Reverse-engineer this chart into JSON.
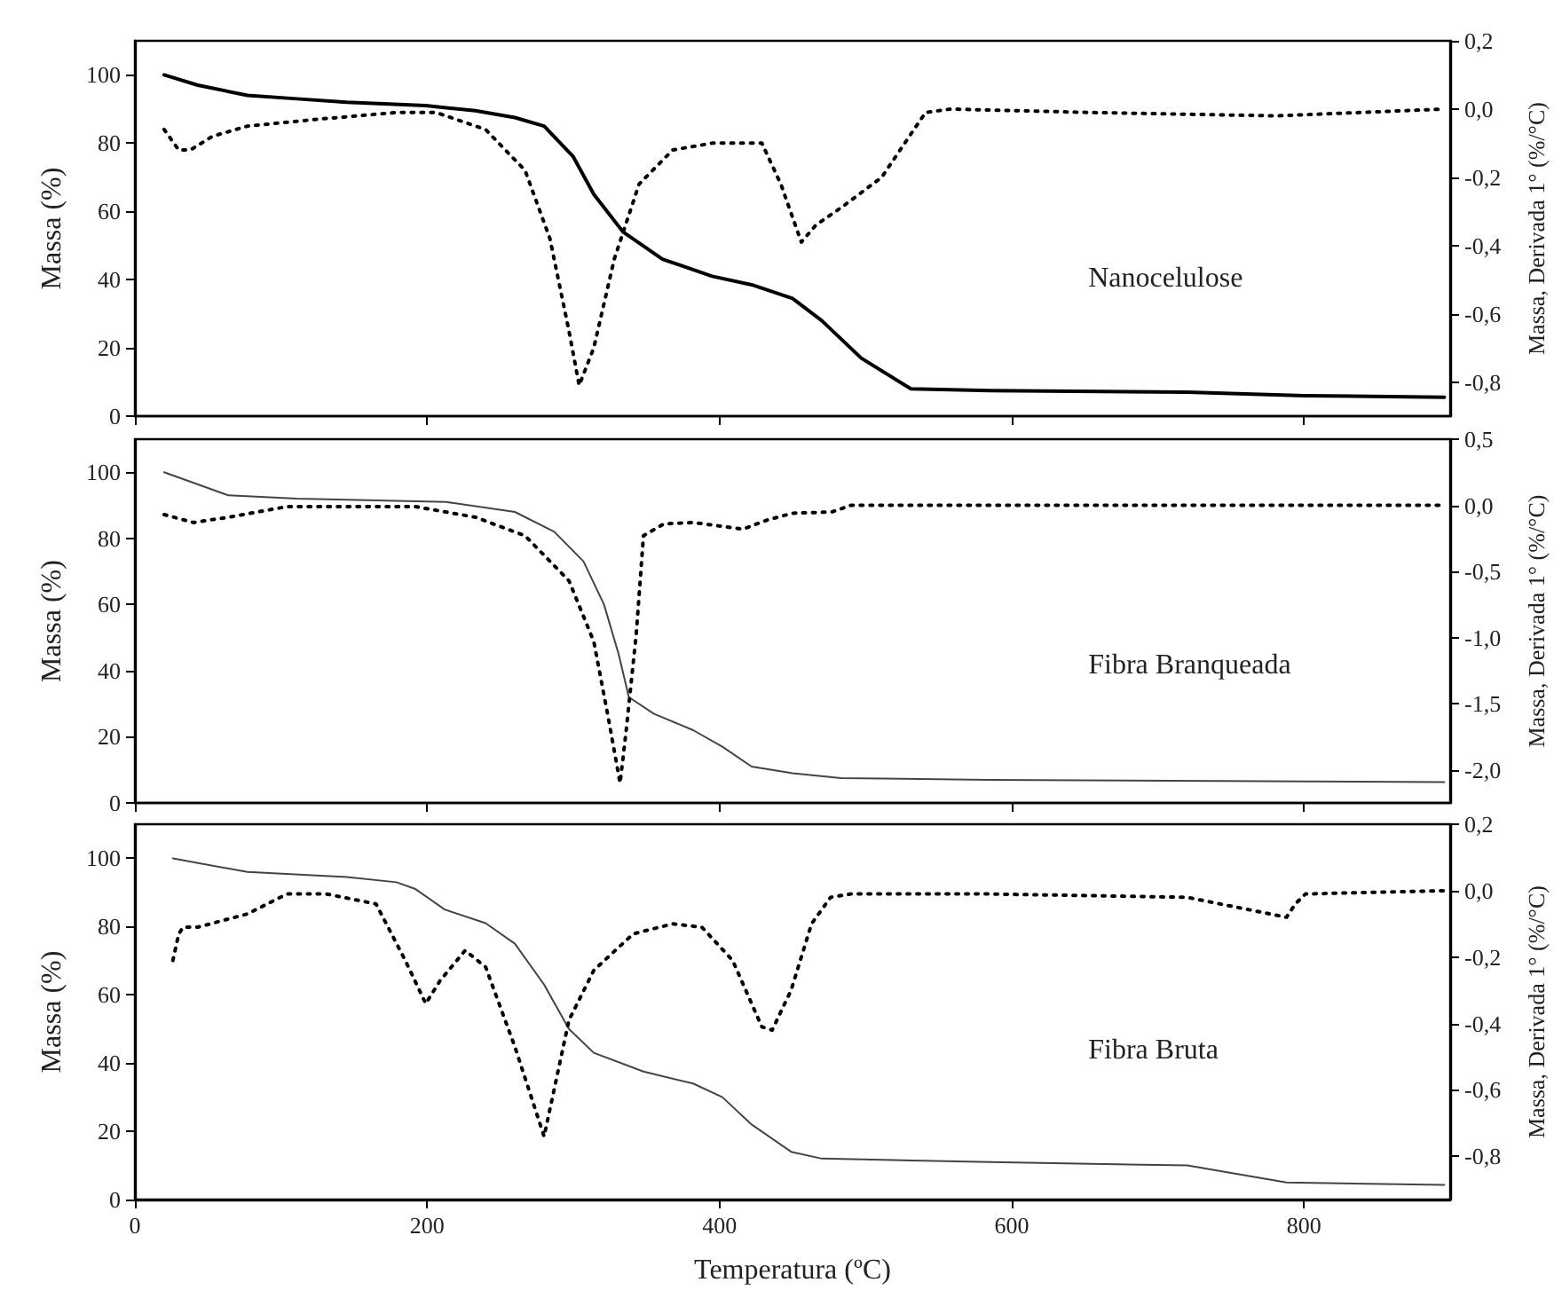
{
  "chart_data": [
    {
      "type": "line",
      "ylabel": "Massa (%)",
      "y2label": "Massa, Derivada 1° (%/°C)",
      "annotations": [
        "Nanocelulose"
      ],
      "xlim": [
        0,
        900
      ],
      "xticks": [
        0,
        200,
        400,
        600,
        800
      ],
      "ylim": [
        0,
        110
      ],
      "yticks": [
        0,
        20,
        40,
        60,
        80,
        100
      ],
      "y2lim": [
        -0.9,
        0.2
      ],
      "y2ticks": [
        {
          "value": 0.2,
          "label": "0,2"
        },
        {
          "value": 0,
          "label": "0,0"
        },
        {
          "value": -0.2,
          "label": "-0,2"
        },
        {
          "value": -0.4,
          "label": "-0,4"
        },
        {
          "value": -0.6,
          "label": "-0,6"
        },
        {
          "value": -0.8,
          "label": "-0,8"
        }
      ],
      "tick_labels": "y",
      "series": [
        {
          "color": "#000000",
          "line_style": "solid",
          "x": [
            20,
            43,
            77,
            111,
            145,
            199,
            233,
            260,
            280,
            300,
            314,
            334,
            361,
            395,
            422,
            450,
            470,
            497,
            531,
            585,
            720,
            800,
            896
          ],
          "values": [
            100,
            97,
            94,
            93,
            92,
            91,
            89.5,
            87.5,
            85,
            76,
            65,
            54,
            46,
            41,
            38.5,
            34.5,
            28,
            17,
            8,
            7.5,
            7,
            6,
            5.5
          ]
        },
        {
          "color": "#000000",
          "line_style": "dotted",
          "axis": "y2",
          "x": [
            20,
            30,
            38,
            53,
            77,
            125,
            179,
            206,
            240,
            267,
            284,
            297,
            304,
            314,
            328,
            345,
            368,
            395,
            429,
            442,
            456,
            466,
            483,
            511,
            541,
            558,
            653,
            781,
            896
          ],
          "values": [
            -0.06,
            -0.12,
            -0.12,
            -0.08,
            -0.05,
            -0.03,
            -0.01,
            -0.01,
            -0.06,
            -0.18,
            -0.38,
            -0.65,
            -0.81,
            -0.7,
            -0.44,
            -0.22,
            -0.12,
            -0.1,
            -0.1,
            -0.22,
            -0.39,
            -0.34,
            -0.29,
            -0.2,
            -0.01,
            0,
            -0.01,
            -0.02,
            0
          ]
        }
      ]
    },
    {
      "type": "line",
      "ylabel": "Massa (%)",
      "y2label": "Massa, Derivada 1° (%/°C)",
      "annotations": [
        "Fibra Branqueada"
      ],
      "xlim": [
        0,
        900
      ],
      "xticks": [
        0,
        200,
        400,
        600,
        800
      ],
      "ylim": [
        0,
        110
      ],
      "yticks": [
        0,
        20,
        40,
        60,
        80,
        100
      ],
      "y2lim": [
        -2.25,
        0.5
      ],
      "y2ticks": [
        {
          "value": 0.5,
          "label": "0,5"
        },
        {
          "value": 0,
          "label": "0,0"
        },
        {
          "value": -0.5,
          "label": "-0,5"
        },
        {
          "value": -1,
          "label": "-1,0"
        },
        {
          "value": -1.5,
          "label": "-1,5"
        },
        {
          "value": -2,
          "label": "-2,0"
        }
      ],
      "tick_labels": "y",
      "series": [
        {
          "color": "#444444",
          "line_style": "solid",
          "x": [
            20,
            64,
            111,
            213,
            260,
            287,
            307,
            321,
            331,
            338,
            355,
            382,
            402,
            422,
            450,
            483,
            585,
            896
          ],
          "values": [
            100,
            93,
            92,
            91,
            88,
            82,
            73,
            60,
            45,
            32,
            27,
            22,
            17,
            11,
            9,
            7.5,
            7,
            6.3
          ]
        },
        {
          "color": "#000000",
          "line_style": "dotted",
          "axis": "y2",
          "x": [
            20,
            40,
            64,
            104,
            192,
            233,
            267,
            297,
            314,
            324,
            332,
            336,
            343,
            348,
            362,
            382,
            416,
            433,
            450,
            477,
            490,
            896
          ],
          "values": [
            -0.07,
            -0.13,
            -0.09,
            -0.01,
            -0.01,
            -0.09,
            -0.23,
            -0.57,
            -1.03,
            -1.61,
            -2.1,
            -1.72,
            -0.98,
            -0.23,
            -0.14,
            -0.13,
            -0.18,
            -0.11,
            -0.06,
            -0.05,
            0,
            0
          ]
        }
      ]
    },
    {
      "type": "line",
      "xlabel": "Temperatura (ºC)",
      "ylabel": "Massa (%)",
      "y2label": "Massa, Derivada 1° (%/°C)",
      "annotations": [
        "Fibra Bruta"
      ],
      "xlim": [
        0,
        900
      ],
      "xticks": [
        0,
        200,
        400,
        600,
        800
      ],
      "ylim": [
        0,
        110
      ],
      "yticks": [
        0,
        20,
        40,
        60,
        80,
        100
      ],
      "y2lim": [
        -0.93,
        0.2
      ],
      "y2ticks": [
        {
          "value": 0.2,
          "label": "0,2"
        },
        {
          "value": 0,
          "label": "0,0"
        },
        {
          "value": -0.2,
          "label": "-0,2"
        },
        {
          "value": -0.4,
          "label": "-0,4"
        },
        {
          "value": -0.6,
          "label": "-0,6"
        },
        {
          "value": -0.8,
          "label": "-0,8"
        }
      ],
      "series": [
        {
          "color": "#444444",
          "line_style": "solid",
          "x": [
            26,
            77,
            145,
            179,
            192,
            212,
            240,
            260,
            280,
            297,
            314,
            348,
            382,
            402,
            422,
            449,
            470,
            585,
            720,
            788,
            896
          ],
          "values": [
            100,
            96,
            94.5,
            93,
            91,
            85,
            81,
            75,
            63,
            50,
            43,
            37.5,
            34,
            30,
            22,
            14,
            12,
            11,
            10,
            5,
            4.3
          ]
        },
        {
          "color": "#000000",
          "line_style": "dotted",
          "axis": "y2",
          "x": [
            26,
            30,
            33,
            43,
            77,
            104,
            131,
            165,
            185,
            199,
            209,
            226,
            240,
            260,
            280,
            297,
            314,
            341,
            368,
            388,
            409,
            429,
            436,
            449,
            463,
            476,
            490,
            585,
            720,
            788,
            794,
            801,
            896
          ],
          "values": [
            -0.21,
            -0.13,
            -0.11,
            -0.11,
            -0.07,
            -0.01,
            -0.01,
            -0.04,
            -0.21,
            -0.34,
            -0.27,
            -0.18,
            -0.23,
            -0.47,
            -0.74,
            -0.39,
            -0.24,
            -0.13,
            -0.1,
            -0.11,
            -0.21,
            -0.41,
            -0.42,
            -0.3,
            -0.1,
            -0.02,
            -0.01,
            -0.01,
            -0.02,
            -0.08,
            -0.04,
            -0.01,
            0
          ]
        }
      ]
    }
  ]
}
